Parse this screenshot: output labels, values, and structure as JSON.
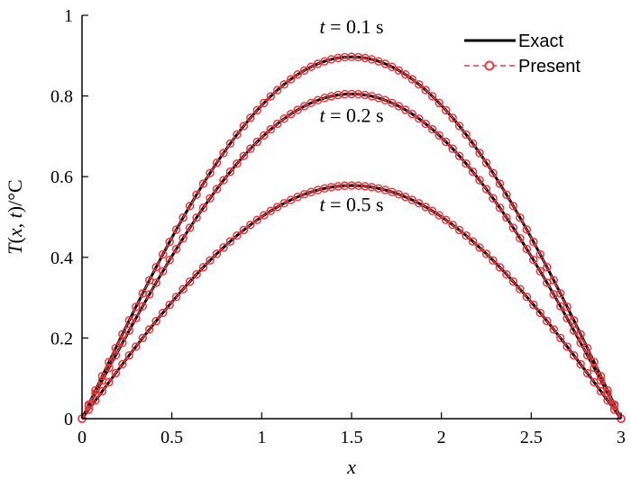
{
  "chart_data": {
    "type": "line",
    "xlabel": "x",
    "ylabel": "T(x, t)/°C",
    "xlim": [
      0,
      3
    ],
    "ylim": [
      0,
      1
    ],
    "xticks": [
      "0",
      "0.5",
      "1",
      "1.5",
      "2",
      "2.5",
      "3"
    ],
    "yticks": [
      "0",
      "0.2",
      "0.4",
      "0.6",
      "0.8",
      "1"
    ],
    "grid": false,
    "legend_position": "top-right",
    "legend": [
      {
        "label": "Exact",
        "style": "solid black line"
      },
      {
        "label": "Present",
        "style": "red dashed line with circle markers"
      }
    ],
    "annotations": [
      {
        "label": "t = 0.1 s",
        "italic": "t",
        "rest": " = 0.1 s"
      },
      {
        "label": "t = 0.2 s",
        "italic": "t",
        "rest": " = 0.2 s"
      },
      {
        "label": "t = 0.5 s",
        "italic": "t",
        "rest": " = 0.5 s"
      }
    ],
    "x_range": [
      0,
      3
    ],
    "n_points": 80,
    "series": [
      {
        "name": "Exact",
        "t": 0.1,
        "peak_value": 0.897,
        "x_at_peak": 1.5,
        "shape": "half-sine"
      },
      {
        "name": "Exact",
        "t": 0.2,
        "peak_value": 0.805,
        "x_at_peak": 1.5,
        "shape": "half-sine"
      },
      {
        "name": "Exact",
        "t": 0.5,
        "peak_value": 0.578,
        "x_at_peak": 1.5,
        "shape": "half-sine"
      },
      {
        "name": "Present",
        "t": 0.1,
        "peak_value": 0.897,
        "x_at_peak": 1.5,
        "shape": "half-sine"
      },
      {
        "name": "Present",
        "t": 0.2,
        "peak_value": 0.805,
        "x_at_peak": 1.5,
        "shape": "half-sine"
      },
      {
        "name": "Present",
        "t": 0.5,
        "peak_value": 0.578,
        "x_at_peak": 1.5,
        "shape": "half-sine"
      }
    ],
    "colors": {
      "exact": "#000000",
      "present": "#e8393f"
    }
  }
}
